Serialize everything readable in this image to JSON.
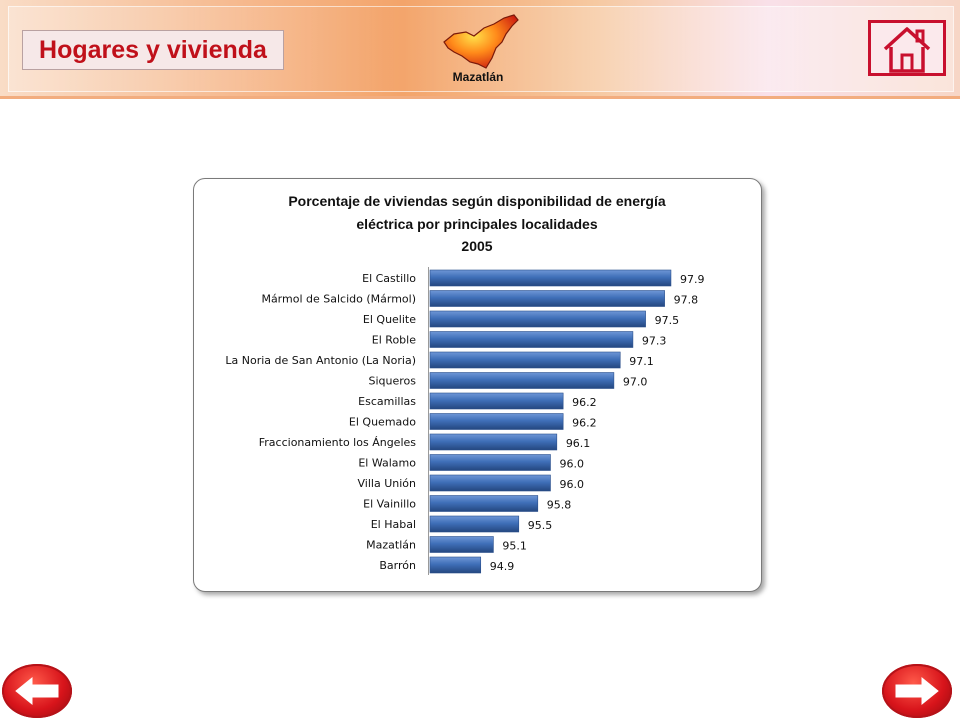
{
  "header": {
    "section_title": "Hogares y vivienda",
    "region_name": "Mazatlán",
    "home_icon": "home-icon"
  },
  "navigation": {
    "prev_icon": "arrow-left-icon",
    "next_icon": "arrow-right-icon"
  },
  "colors": {
    "bar": "#3f6fb8",
    "title_red": "#c0101a",
    "nav_red": "#d8141b"
  },
  "chart_data": {
    "type": "bar",
    "orientation": "horizontal",
    "title": [
      "Porcentaje de viviendas según disponibilidad de energía",
      "eléctrica por principales localidades",
      "2005"
    ],
    "xlabel": "",
    "ylabel": "",
    "grid": false,
    "legend": "none",
    "xlim": [
      94.1,
      98.5
    ],
    "categories": [
      "El Castillo",
      "Mármol de Salcido (Mármol)",
      "El Quelite",
      "El Roble",
      "La Noria de San Antonio (La Noria)",
      "Siqueros",
      "Escamillas",
      "El Quemado",
      "Fraccionamiento los Ángeles",
      "El Walamo",
      "Villa Unión",
      "El Vainillo",
      "El Habal",
      "Mazatlán",
      "Barrón"
    ],
    "values": [
      97.9,
      97.8,
      97.5,
      97.3,
      97.1,
      97.0,
      96.2,
      96.2,
      96.1,
      96.0,
      96.0,
      95.8,
      95.5,
      95.1,
      94.9
    ],
    "value_labels": [
      "97.9",
      "97.8",
      "97.5",
      "97.3",
      "97.1",
      "97.0",
      "96.2",
      "96.2",
      "96.1",
      "96.0",
      "96.0",
      "95.8",
      "95.5",
      "95.1",
      "94.9"
    ]
  }
}
